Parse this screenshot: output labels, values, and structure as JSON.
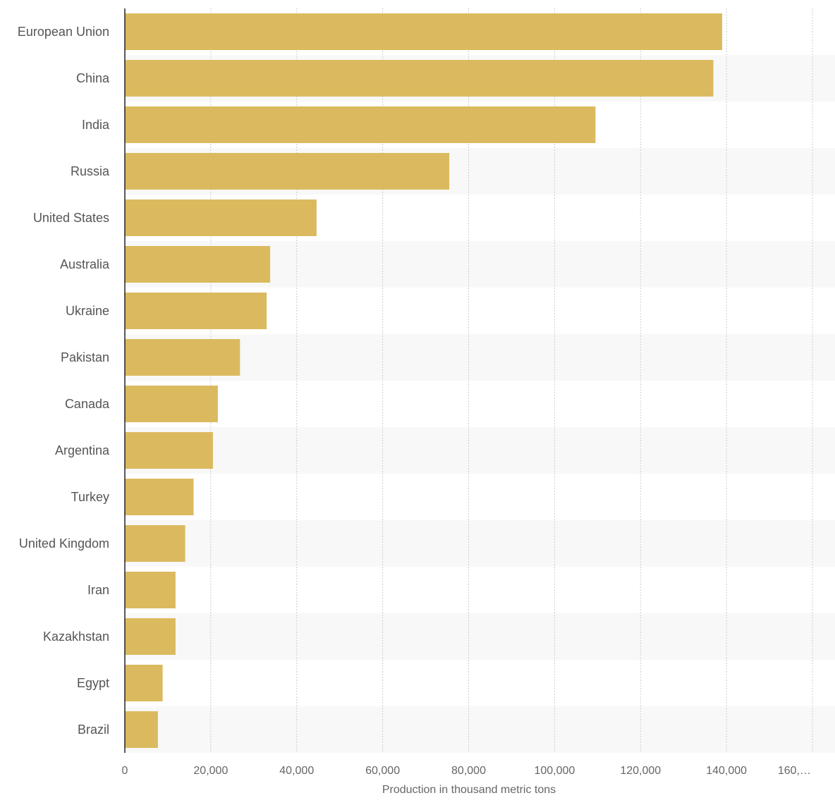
{
  "chart_data": {
    "type": "bar",
    "orientation": "horizontal",
    "categories": [
      "European Union",
      "China",
      "India",
      "Russia",
      "United States",
      "Australia",
      "Ukraine",
      "Pakistan",
      "Canada",
      "Argentina",
      "Turkey",
      "United Kingdom",
      "Iran",
      "Kazakhstan",
      "Egypt",
      "Brazil"
    ],
    "values": [
      139000,
      136950,
      109520,
      75500,
      44620,
      33820,
      33010,
      26800,
      21650,
      20500,
      16000,
      14050,
      11800,
      11800,
      8800,
      7700
    ],
    "title": "",
    "xlabel": "Production in thousand metric tons",
    "ylabel": "",
    "xlim": [
      0,
      160000
    ],
    "ticks": [
      "0",
      "20,000",
      "40,000",
      "60,000",
      "80,000",
      "100,000",
      "120,000",
      "140,000",
      "160,…"
    ],
    "grid": true,
    "legend": "none",
    "bar_color": "#dbba5f",
    "stripe_color": "#f8f8f8",
    "grid_color": "#cccccc",
    "axis_color": "#222222"
  }
}
